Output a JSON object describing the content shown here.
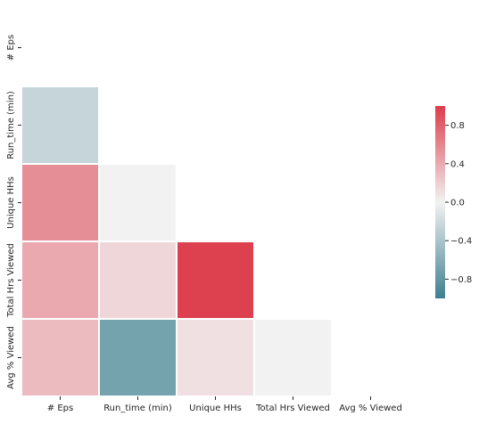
{
  "chart_data": {
    "type": "heatmap",
    "title": "",
    "variables": [
      "# Eps",
      "Run_time (min)",
      "Unique HHs",
      "Total Hrs Viewed",
      "Avg % Viewed"
    ],
    "x_categories": [
      "# Eps",
      "Run_time (min)",
      "Unique HHs",
      "Total Hrs Viewed",
      "Avg % Viewed"
    ],
    "y_categories": [
      "# Eps",
      "Run_time (min)",
      "Unique HHs",
      "Total Hrs Viewed",
      "Avg % Viewed"
    ],
    "mask": "upper triangle incl. diagonal",
    "cells": [
      {
        "row": "Run_time (min)",
        "col": "# Eps",
        "value": -0.25
      },
      {
        "row": "Unique HHs",
        "col": "# Eps",
        "value": 0.55
      },
      {
        "row": "Unique HHs",
        "col": "Run_time (min)",
        "value": 0.0
      },
      {
        "row": "Total Hrs Viewed",
        "col": "# Eps",
        "value": 0.4
      },
      {
        "row": "Total Hrs Viewed",
        "col": "Run_time (min)",
        "value": 0.15
      },
      {
        "row": "Total Hrs Viewed",
        "col": "Unique HHs",
        "value": 0.97
      },
      {
        "row": "Avg % Viewed",
        "col": "# Eps",
        "value": 0.3
      },
      {
        "row": "Avg % Viewed",
        "col": "Run_time (min)",
        "value": -0.7
      },
      {
        "row": "Avg % Viewed",
        "col": "Unique HHs",
        "value": 0.1
      },
      {
        "row": "Avg % Viewed",
        "col": "Total Hrs Viewed",
        "value": 0.0
      }
    ],
    "colorbar": {
      "range": [
        -1,
        1
      ],
      "ticks": [
        0.8,
        0.4,
        0.0,
        -0.4,
        -0.8
      ],
      "tick_labels": [
        "0.8",
        "0.4",
        "0.0",
        "−0.4",
        "−0.8"
      ],
      "cmap_negative": "#3e7f90",
      "cmap_center": "#f2f2f2",
      "cmap_positive": "#dc3c4b"
    },
    "grid": false,
    "legend": "colorbar right"
  }
}
